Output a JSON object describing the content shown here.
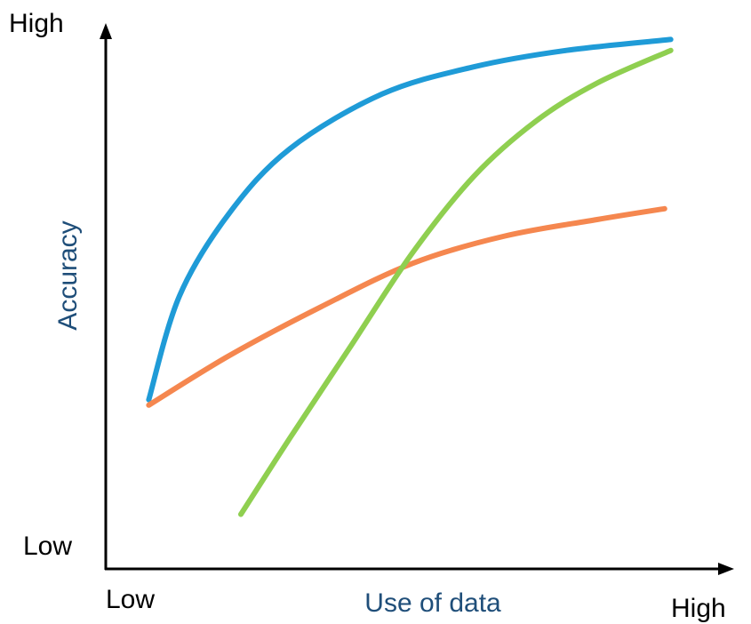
{
  "chart_data": {
    "type": "line",
    "title": "",
    "xlabel": "Use of data",
    "ylabel": "Accuracy",
    "x_tick_labels": [
      "Low",
      "High"
    ],
    "y_tick_labels": [
      "Low",
      "High"
    ],
    "xlim": [
      0,
      10
    ],
    "ylim": [
      0,
      10
    ],
    "grid": false,
    "colors": {
      "axis": "#000000",
      "axis_title": "#1f4e79",
      "tick_label": "#000000"
    },
    "series": [
      {
        "color": "#1f9bd7",
        "x": [
          0.7,
          1.2,
          2.0,
          3.0,
          4.5,
          6.0,
          7.5,
          9.2
        ],
        "y": [
          3.1,
          5.0,
          6.5,
          7.7,
          8.7,
          9.2,
          9.5,
          9.7
        ]
      },
      {
        "color": "#f5874f",
        "x": [
          0.7,
          2.0,
          3.5,
          5.0,
          6.5,
          8.0,
          9.1
        ],
        "y": [
          3.0,
          3.9,
          4.8,
          5.6,
          6.1,
          6.4,
          6.6
        ]
      },
      {
        "color": "#8fcf50",
        "x": [
          2.2,
          3.0,
          4.0,
          5.0,
          6.0,
          7.0,
          8.0,
          9.2
        ],
        "y": [
          1.0,
          2.4,
          4.1,
          5.8,
          7.2,
          8.2,
          8.9,
          9.5
        ]
      }
    ]
  }
}
